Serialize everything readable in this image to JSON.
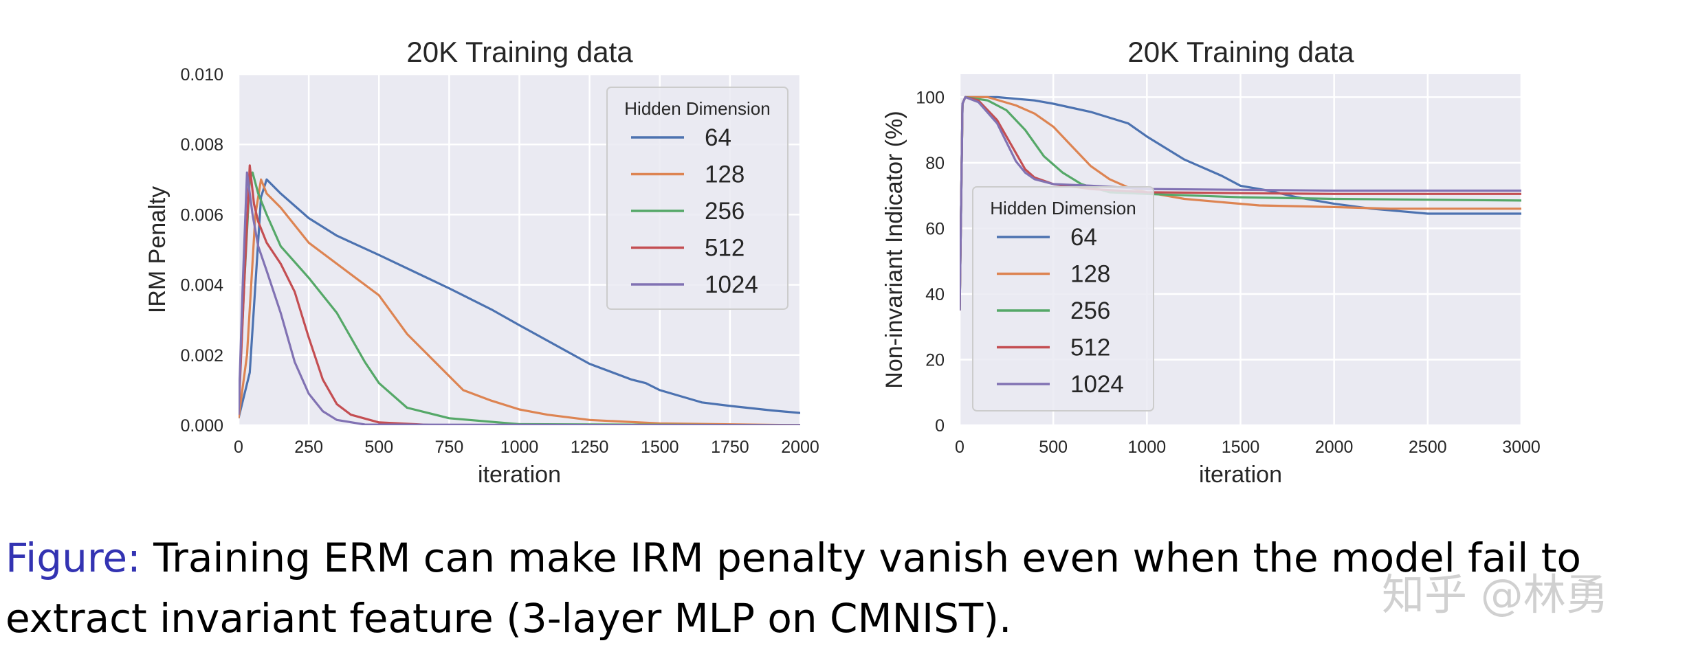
{
  "chart_data": [
    {
      "type": "line",
      "title": "20K Training data",
      "xlabel": "iteration",
      "ylabel": "IRM Penalty",
      "xlim": [
        0,
        2000
      ],
      "ylim": [
        0,
        0.01
      ],
      "xticks": [
        "0",
        "250",
        "500",
        "750",
        "1000",
        "1250",
        "1500",
        "1750",
        "2000"
      ],
      "xtick_values": [
        0,
        250,
        500,
        750,
        1000,
        1250,
        1500,
        1750,
        2000
      ],
      "yticks": [
        "0.000",
        "0.002",
        "0.004",
        "0.006",
        "0.008",
        "0.010"
      ],
      "ytick_values": [
        0,
        0.002,
        0.004,
        0.006,
        0.008,
        0.01
      ],
      "grid": true,
      "legend": {
        "title": "Hidden Dimension",
        "placement": "upper-right"
      },
      "series": [
        {
          "name": "64",
          "color": "#4c72b0",
          "x": [
            0,
            40,
            60,
            80,
            100,
            150,
            250,
            350,
            500,
            750,
            900,
            1000,
            1250,
            1400,
            1450,
            1500,
            1650,
            1750,
            1900,
            2000
          ],
          "y": [
            0.0002,
            0.0015,
            0.004,
            0.0065,
            0.007,
            0.0066,
            0.0059,
            0.0054,
            0.00485,
            0.0039,
            0.0033,
            0.00285,
            0.00175,
            0.0013,
            0.0012,
            0.001,
            0.00065,
            0.00055,
            0.00042,
            0.00035
          ]
        },
        {
          "name": "128",
          "color": "#dd8452",
          "x": [
            0,
            30,
            60,
            80,
            100,
            150,
            250,
            400,
            500,
            600,
            750,
            800,
            900,
            1000,
            1100,
            1250,
            1500,
            2000
          ],
          "y": [
            0.0002,
            0.002,
            0.006,
            0.007,
            0.0066,
            0.0062,
            0.0052,
            0.0043,
            0.0037,
            0.0026,
            0.0014,
            0.001,
            0.0007,
            0.00045,
            0.0003,
            0.00015,
            5e-05,
            0
          ]
        },
        {
          "name": "256",
          "color": "#55a868",
          "x": [
            0,
            20,
            40,
            50,
            70,
            100,
            150,
            250,
            350,
            450,
            500,
            600,
            750,
            1000,
            2000
          ],
          "y": [
            0.0005,
            0.004,
            0.007,
            0.0072,
            0.0066,
            0.006,
            0.0051,
            0.0042,
            0.0032,
            0.0018,
            0.0012,
            0.0005,
            0.0002,
            3e-05,
            0
          ]
        },
        {
          "name": "512",
          "color": "#c44e52",
          "x": [
            0,
            20,
            40,
            55,
            70,
            100,
            150,
            200,
            250,
            300,
            350,
            400,
            500,
            700,
            2000
          ],
          "y": [
            0.0003,
            0.004,
            0.0074,
            0.0063,
            0.0058,
            0.0052,
            0.0046,
            0.0038,
            0.0025,
            0.0013,
            0.0006,
            0.0003,
            8e-05,
            0,
            0
          ]
        },
        {
          "name": "1024",
          "color": "#8172b3",
          "x": [
            0,
            15,
            30,
            50,
            70,
            100,
            150,
            200,
            250,
            300,
            350,
            450,
            2000
          ],
          "y": [
            0.0003,
            0.004,
            0.0072,
            0.006,
            0.0051,
            0.0044,
            0.0032,
            0.0018,
            0.0009,
            0.0004,
            0.00015,
            2e-05,
            0
          ]
        }
      ]
    },
    {
      "type": "line",
      "title": "20K Training data",
      "xlabel": "iteration",
      "ylabel": "Non-invariant Indicator (%)",
      "xlim": [
        0,
        3000
      ],
      "ylim": [
        0,
        107
      ],
      "xticks": [
        "0",
        "500",
        "1000",
        "1500",
        "2000",
        "2500",
        "3000"
      ],
      "xtick_values": [
        0,
        500,
        1000,
        1500,
        2000,
        2500,
        3000
      ],
      "yticks": [
        "0",
        "20",
        "40",
        "60",
        "80",
        "100"
      ],
      "ytick_values": [
        0,
        20,
        40,
        60,
        80,
        100
      ],
      "grid": true,
      "legend": {
        "title": "Hidden Dimension",
        "placement": "center-left"
      },
      "series": [
        {
          "name": "64",
          "color": "#4c72b0",
          "x": [
            0,
            15,
            30,
            200,
            400,
            500,
            700,
            900,
            1000,
            1200,
            1400,
            1500,
            1650,
            1800,
            2000,
            2200,
            2300,
            2500,
            3000
          ],
          "y": [
            35,
            98,
            100,
            100,
            99,
            98,
            95.5,
            92,
            88,
            81,
            76,
            73,
            71.5,
            69.5,
            67.5,
            66,
            65.5,
            64.5,
            64.5
          ]
        },
        {
          "name": "128",
          "color": "#dd8452",
          "x": [
            0,
            15,
            30,
            150,
            300,
            400,
            500,
            600,
            700,
            800,
            900,
            1000,
            1200,
            1400,
            1600,
            2000,
            2300,
            3000
          ],
          "y": [
            35,
            98,
            100,
            100,
            97.5,
            95,
            91,
            85,
            79,
            75,
            72.5,
            71,
            69,
            68,
            67,
            66.5,
            66,
            66
          ]
        },
        {
          "name": "256",
          "color": "#55a868",
          "x": [
            0,
            15,
            30,
            150,
            250,
            350,
            450,
            550,
            650,
            800,
            1000,
            1500,
            2000,
            3000
          ],
          "y": [
            35,
            98,
            100,
            99,
            96,
            90,
            82,
            77,
            73.5,
            71,
            70.5,
            69.5,
            69,
            68.5
          ]
        },
        {
          "name": "512",
          "color": "#c44e52",
          "x": [
            0,
            15,
            30,
            100,
            200,
            300,
            350,
            400,
            500,
            700,
            1000,
            2000,
            3000
          ],
          "y": [
            35,
            98,
            100,
            99,
            93,
            83,
            78,
            75.5,
            73.5,
            72,
            71,
            70.5,
            70.5
          ]
        },
        {
          "name": "1024",
          "color": "#8172b3",
          "x": [
            0,
            15,
            30,
            100,
            200,
            300,
            350,
            400,
            500,
            700,
            1000,
            2000,
            3000
          ],
          "y": [
            35,
            98,
            100,
            98.5,
            92,
            80.5,
            77,
            75,
            73.5,
            73,
            72,
            71.5,
            71.5
          ]
        }
      ]
    }
  ],
  "caption": {
    "label": "Figure:",
    "line1": " Training ERM can make IRM penalty vanish even when the model fail to",
    "line2": "extract invariant feature (3-layer MLP on CMNIST)."
  },
  "watermark": "知乎 @林勇",
  "colors": {
    "plot_background": "#eaeaf2",
    "grid": "#ffffff",
    "caption_label": "#3333b2"
  }
}
